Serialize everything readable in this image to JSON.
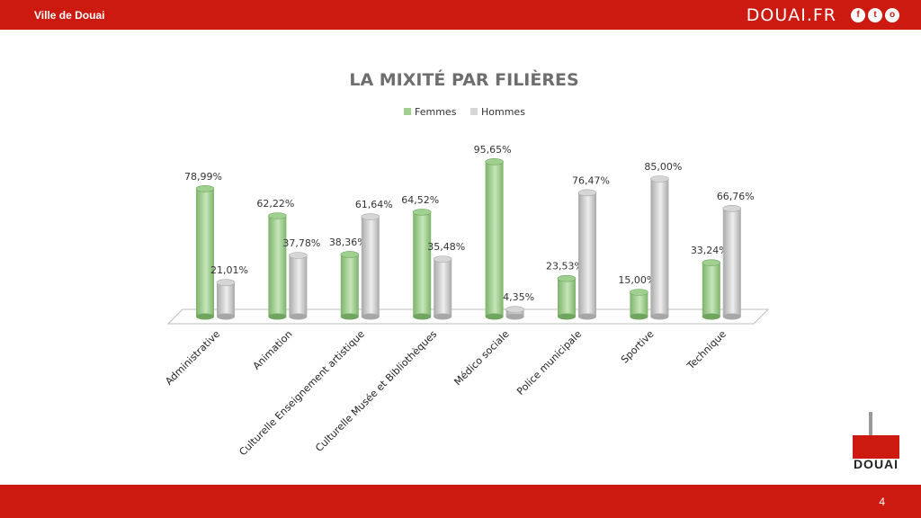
{
  "header": {
    "left_title": "Ville de Douai",
    "site": "DOUAI.FR",
    "social": [
      "f",
      "t",
      "o"
    ]
  },
  "footer": {
    "page_number": "4"
  },
  "logo": {
    "word": "DOUAI"
  },
  "colors": {
    "femmes": "#9fd08f",
    "hommes": "#d6d6d6",
    "bar": "#cc1a10"
  },
  "chart_data": {
    "type": "bar",
    "title": "LA MIXITÉ PAR FILIÈRES",
    "categories": [
      "Administrative",
      "Animation",
      "Culturelle Enseignement artistique",
      "Culturelle Musée et Bibliothèques",
      "Médico sociale",
      "Police municipale",
      "Sportive",
      "Technique"
    ],
    "series": [
      {
        "name": "Femmes",
        "values": [
          78.99,
          62.22,
          38.36,
          64.52,
          95.65,
          23.53,
          15.0,
          33.24
        ],
        "labels": [
          "78,99%",
          "62,22%",
          "38,36%",
          "64,52%",
          "95,65%",
          "23,53%",
          "15,00%",
          "33,24%"
        ]
      },
      {
        "name": "Hommes",
        "values": [
          21.01,
          37.78,
          61.64,
          35.48,
          4.35,
          76.47,
          85.0,
          66.76
        ],
        "labels": [
          "21,01%",
          "37,78%",
          "61,64%",
          "35,48%",
          "4,35%",
          "76,47%",
          "85,00%",
          "66,76%"
        ]
      }
    ],
    "ylim": [
      0,
      100
    ],
    "legend": "top-center",
    "grid": false
  }
}
